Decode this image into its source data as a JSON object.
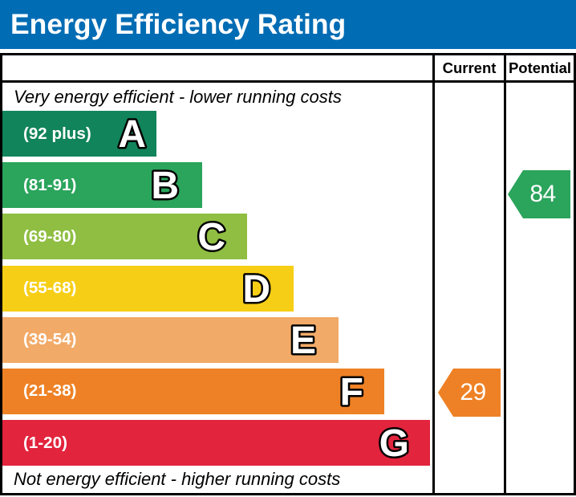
{
  "header": {
    "title": "Energy Efficiency Rating",
    "background_color": "#006cb4",
    "text_color": "#ffffff"
  },
  "table": {
    "columns": {
      "current": "Current",
      "potential": "Potential"
    },
    "border_color": "#000000"
  },
  "notes": {
    "top": "Very energy efficient - lower running costs",
    "bottom": "Not energy efficient - higher running costs"
  },
  "chart_data": {
    "type": "bar",
    "title": "Energy Efficiency Rating",
    "legend_position": "top-columns",
    "bands": [
      {
        "letter": "A",
        "range_label": "(92 plus)",
        "min": 92,
        "max": 100,
        "color": "#11845b"
      },
      {
        "letter": "B",
        "range_label": "(81-91)",
        "min": 81,
        "max": 91,
        "color": "#2ba45c"
      },
      {
        "letter": "C",
        "range_label": "(69-80)",
        "min": 69,
        "max": 80,
        "color": "#8fbe42"
      },
      {
        "letter": "D",
        "range_label": "(55-68)",
        "min": 55,
        "max": 68,
        "color": "#f6ce15"
      },
      {
        "letter": "E",
        "range_label": "(39-54)",
        "min": 39,
        "max": 54,
        "color": "#f2aa68"
      },
      {
        "letter": "F",
        "range_label": "(21-38)",
        "min": 21,
        "max": 38,
        "color": "#ee8125"
      },
      {
        "letter": "G",
        "range_label": "(1-20)",
        "min": 1,
        "max": 20,
        "color": "#e2243d"
      }
    ],
    "current": {
      "value": 29,
      "band": "F",
      "color": "#ee8125"
    },
    "potential": {
      "value": 84,
      "band": "B",
      "color": "#2ba45c"
    }
  }
}
